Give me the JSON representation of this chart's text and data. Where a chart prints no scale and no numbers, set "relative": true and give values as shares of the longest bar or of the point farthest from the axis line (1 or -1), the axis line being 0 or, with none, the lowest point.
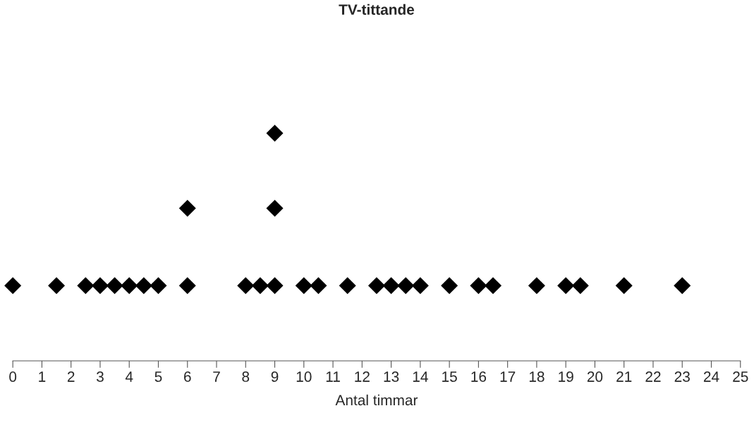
{
  "chart_data": {
    "type": "scatter",
    "title": "TV-tittande",
    "xlabel": "Antal timmar",
    "relative": true,
    "xlim": [
      0,
      25
    ],
    "xticks": [
      0,
      1,
      2,
      3,
      4,
      5,
      6,
      7,
      8,
      9,
      10,
      11,
      12,
      13,
      14,
      15,
      16,
      17,
      18,
      19,
      20,
      21,
      22,
      23,
      24,
      25
    ],
    "tick_labels": "x",
    "marker": "diamond",
    "grid": false,
    "legend": false,
    "series": [
      {
        "color": "#000000",
        "x": [
          0,
          1.5,
          2.5,
          3,
          3.5,
          4,
          4.5,
          5,
          6,
          8,
          8.5,
          9,
          10,
          10.5,
          11.5,
          12.5,
          13,
          13.5,
          14,
          15,
          16,
          16.5,
          18,
          19,
          19.5,
          21,
          23,
          6,
          9,
          9
        ],
        "values": [
          0.33,
          0.33,
          0.33,
          0.33,
          0.33,
          0.33,
          0.33,
          0.33,
          0.33,
          0.33,
          0.33,
          0.33,
          0.33,
          0.33,
          0.33,
          0.33,
          0.33,
          0.33,
          0.33,
          0.33,
          0.33,
          0.33,
          0.33,
          0.33,
          0.33,
          0.33,
          0.33,
          0.67,
          0.67,
          1
        ]
      }
    ]
  }
}
